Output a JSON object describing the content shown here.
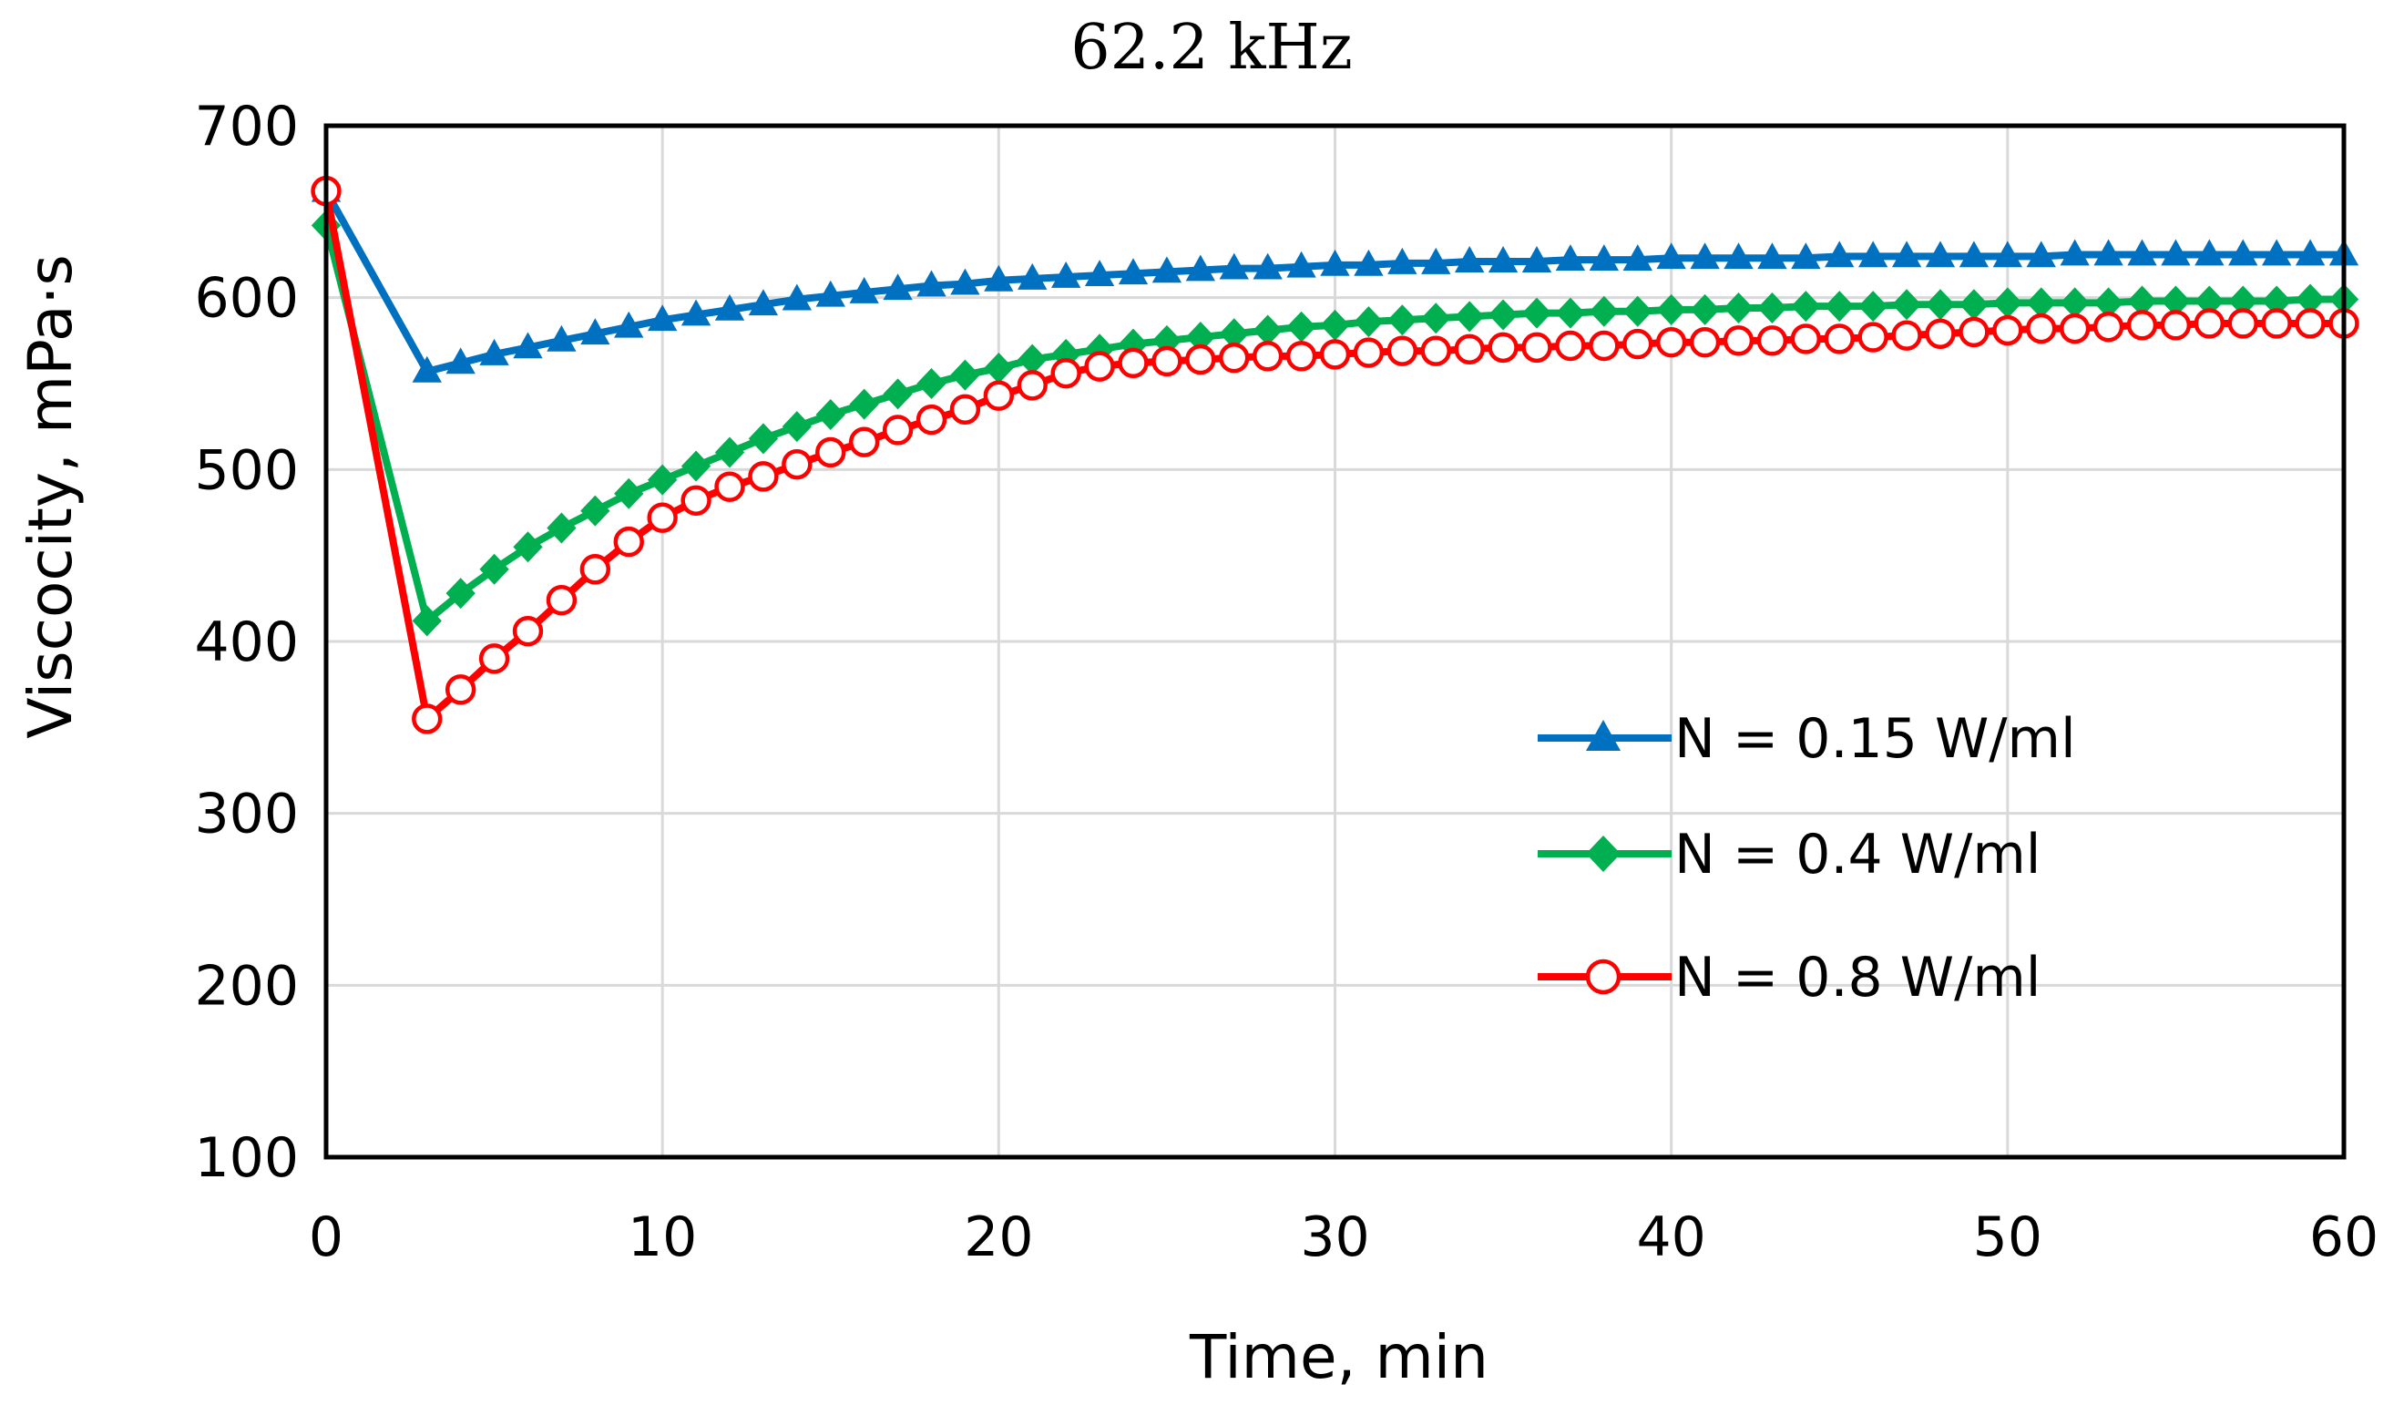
{
  "chart_data": {
    "type": "line",
    "title": "62.2 kHz",
    "xlabel": "Time, min",
    "ylabel": "Viscocity, mPa·s",
    "xlim": [
      0,
      60
    ],
    "ylim": [
      100,
      700
    ],
    "xticks": [
      0,
      10,
      20,
      30,
      40,
      50,
      60
    ],
    "yticks": [
      100,
      200,
      300,
      400,
      500,
      600,
      700
    ],
    "grid": true,
    "legend_position": "right",
    "series": [
      {
        "name": "N = 0.15 W/ml",
        "color": "#0070C0",
        "marker": "triangle",
        "x": [
          0,
          3,
          4,
          5,
          6,
          7,
          8,
          9,
          10,
          11,
          12,
          13,
          14,
          15,
          16,
          17,
          18,
          19,
          20,
          21,
          22,
          23,
          24,
          25,
          26,
          27,
          28,
          29,
          30,
          31,
          32,
          33,
          34,
          35,
          36,
          37,
          38,
          39,
          40,
          41,
          42,
          43,
          44,
          45,
          46,
          47,
          48,
          49,
          50,
          51,
          52,
          53,
          54,
          55,
          56,
          57,
          58,
          59,
          60
        ],
        "y": [
          662,
          557,
          562,
          567,
          571,
          575,
          579,
          583,
          587,
          590,
          593,
          596,
          599,
          601,
          603,
          605,
          607,
          608,
          610,
          611,
          612,
          613,
          614,
          615,
          616,
          617,
          617,
          618,
          619,
          619,
          620,
          620,
          621,
          621,
          621,
          622,
          622,
          622,
          623,
          623,
          623,
          623,
          623,
          624,
          624,
          624,
          624,
          624,
          624,
          624,
          625,
          625,
          625,
          625,
          625,
          625,
          625,
          625,
          625
        ]
      },
      {
        "name": "N = 0.4 W/ml",
        "color": "#00B050",
        "marker": "diamond",
        "x": [
          0,
          3,
          4,
          5,
          6,
          7,
          8,
          9,
          10,
          11,
          12,
          13,
          14,
          15,
          16,
          17,
          18,
          19,
          20,
          21,
          22,
          23,
          24,
          25,
          26,
          27,
          28,
          29,
          30,
          31,
          32,
          33,
          34,
          35,
          36,
          37,
          38,
          39,
          40,
          41,
          42,
          43,
          44,
          45,
          46,
          47,
          48,
          49,
          50,
          51,
          52,
          53,
          54,
          55,
          56,
          57,
          58,
          59,
          60
        ],
        "y": [
          642,
          412,
          428,
          442,
          455,
          466,
          476,
          486,
          494,
          502,
          510,
          518,
          525,
          532,
          538,
          544,
          550,
          555,
          559,
          564,
          567,
          570,
          573,
          575,
          577,
          579,
          581,
          583,
          584,
          586,
          587,
          588,
          589,
          590,
          591,
          591,
          592,
          592,
          593,
          593,
          594,
          594,
          595,
          595,
          595,
          596,
          596,
          596,
          597,
          597,
          597,
          597,
          598,
          598,
          598,
          598,
          598,
          599,
          599
        ]
      },
      {
        "name": "N = 0.8 W/ml",
        "color": "#FF0000",
        "marker": "circle-open",
        "x": [
          0,
          3,
          4,
          5,
          6,
          7,
          8,
          9,
          10,
          11,
          12,
          13,
          14,
          15,
          16,
          17,
          18,
          19,
          20,
          21,
          22,
          23,
          24,
          25,
          26,
          27,
          28,
          29,
          30,
          31,
          32,
          33,
          34,
          35,
          36,
          37,
          38,
          39,
          40,
          41,
          42,
          43,
          44,
          45,
          46,
          47,
          48,
          49,
          50,
          51,
          52,
          53,
          54,
          55,
          56,
          57,
          58,
          59,
          60
        ],
        "y": [
          662,
          355,
          372,
          390,
          406,
          424,
          442,
          458,
          472,
          482,
          490,
          496,
          503,
          510,
          516,
          523,
          529,
          535,
          543,
          549,
          556,
          560,
          562,
          563,
          564,
          565,
          566,
          566,
          567,
          568,
          569,
          569,
          570,
          571,
          571,
          572,
          572,
          573,
          574,
          574,
          575,
          575,
          576,
          576,
          577,
          578,
          579,
          580,
          581,
          582,
          582,
          583,
          584,
          584,
          585,
          585,
          585,
          585,
          585
        ]
      }
    ]
  }
}
